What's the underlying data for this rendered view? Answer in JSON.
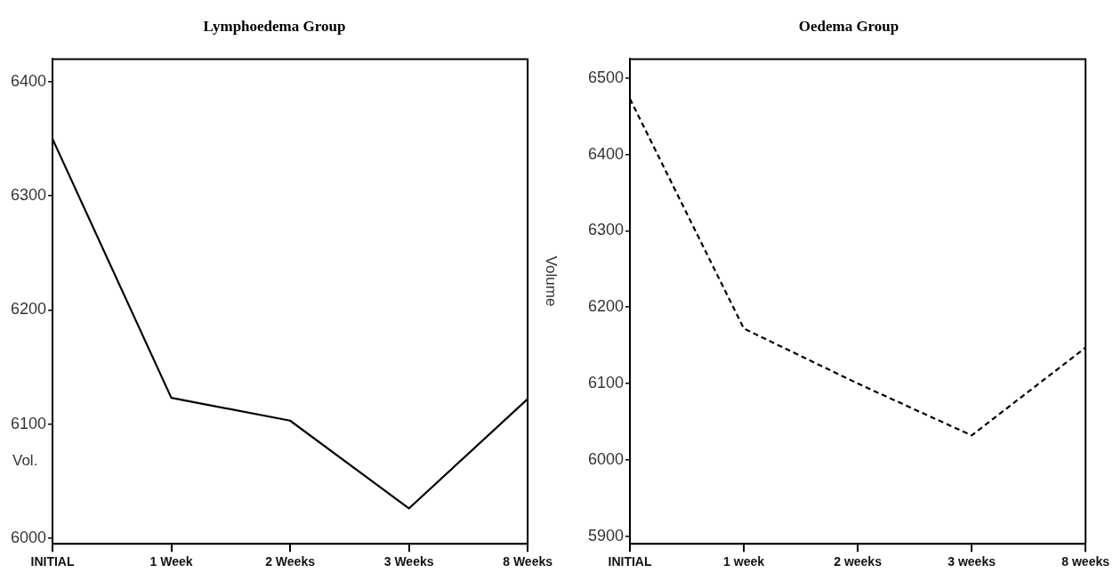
{
  "chart_data": [
    {
      "type": "line",
      "title": "Lymphoedema Group",
      "ylabel": "Vol.",
      "categories": [
        "INITIAL",
        "1 Week",
        "2 Weeks",
        "3 Weeks",
        "8 Weeks"
      ],
      "series": [
        {
          "color": "#000000",
          "values": [
            6350,
            6123,
            6103,
            6026,
            6122
          ]
        }
      ],
      "ylim": [
        5995,
        6420
      ],
      "yticks": [
        6000,
        6100,
        6200,
        6300,
        6400
      ],
      "grid": false,
      "legend": false,
      "marker": "none",
      "line_style": "solid"
    },
    {
      "type": "line",
      "title": "Oedema Group",
      "ylabel": "Volume",
      "categories": [
        "INITIAL",
        "1 week",
        "2 weeks",
        "3 weeks",
        "8 weeks"
      ],
      "series": [
        {
          "color": "#000000",
          "values": [
            6473,
            6172,
            6100,
            6032,
            6147
          ]
        }
      ],
      "ylim": [
        5890,
        6525
      ],
      "yticks": [
        5900,
        6000,
        6100,
        6200,
        6300,
        6400,
        6500
      ],
      "grid": false,
      "legend": false,
      "marker": "none",
      "line_style": "dashed"
    }
  ]
}
